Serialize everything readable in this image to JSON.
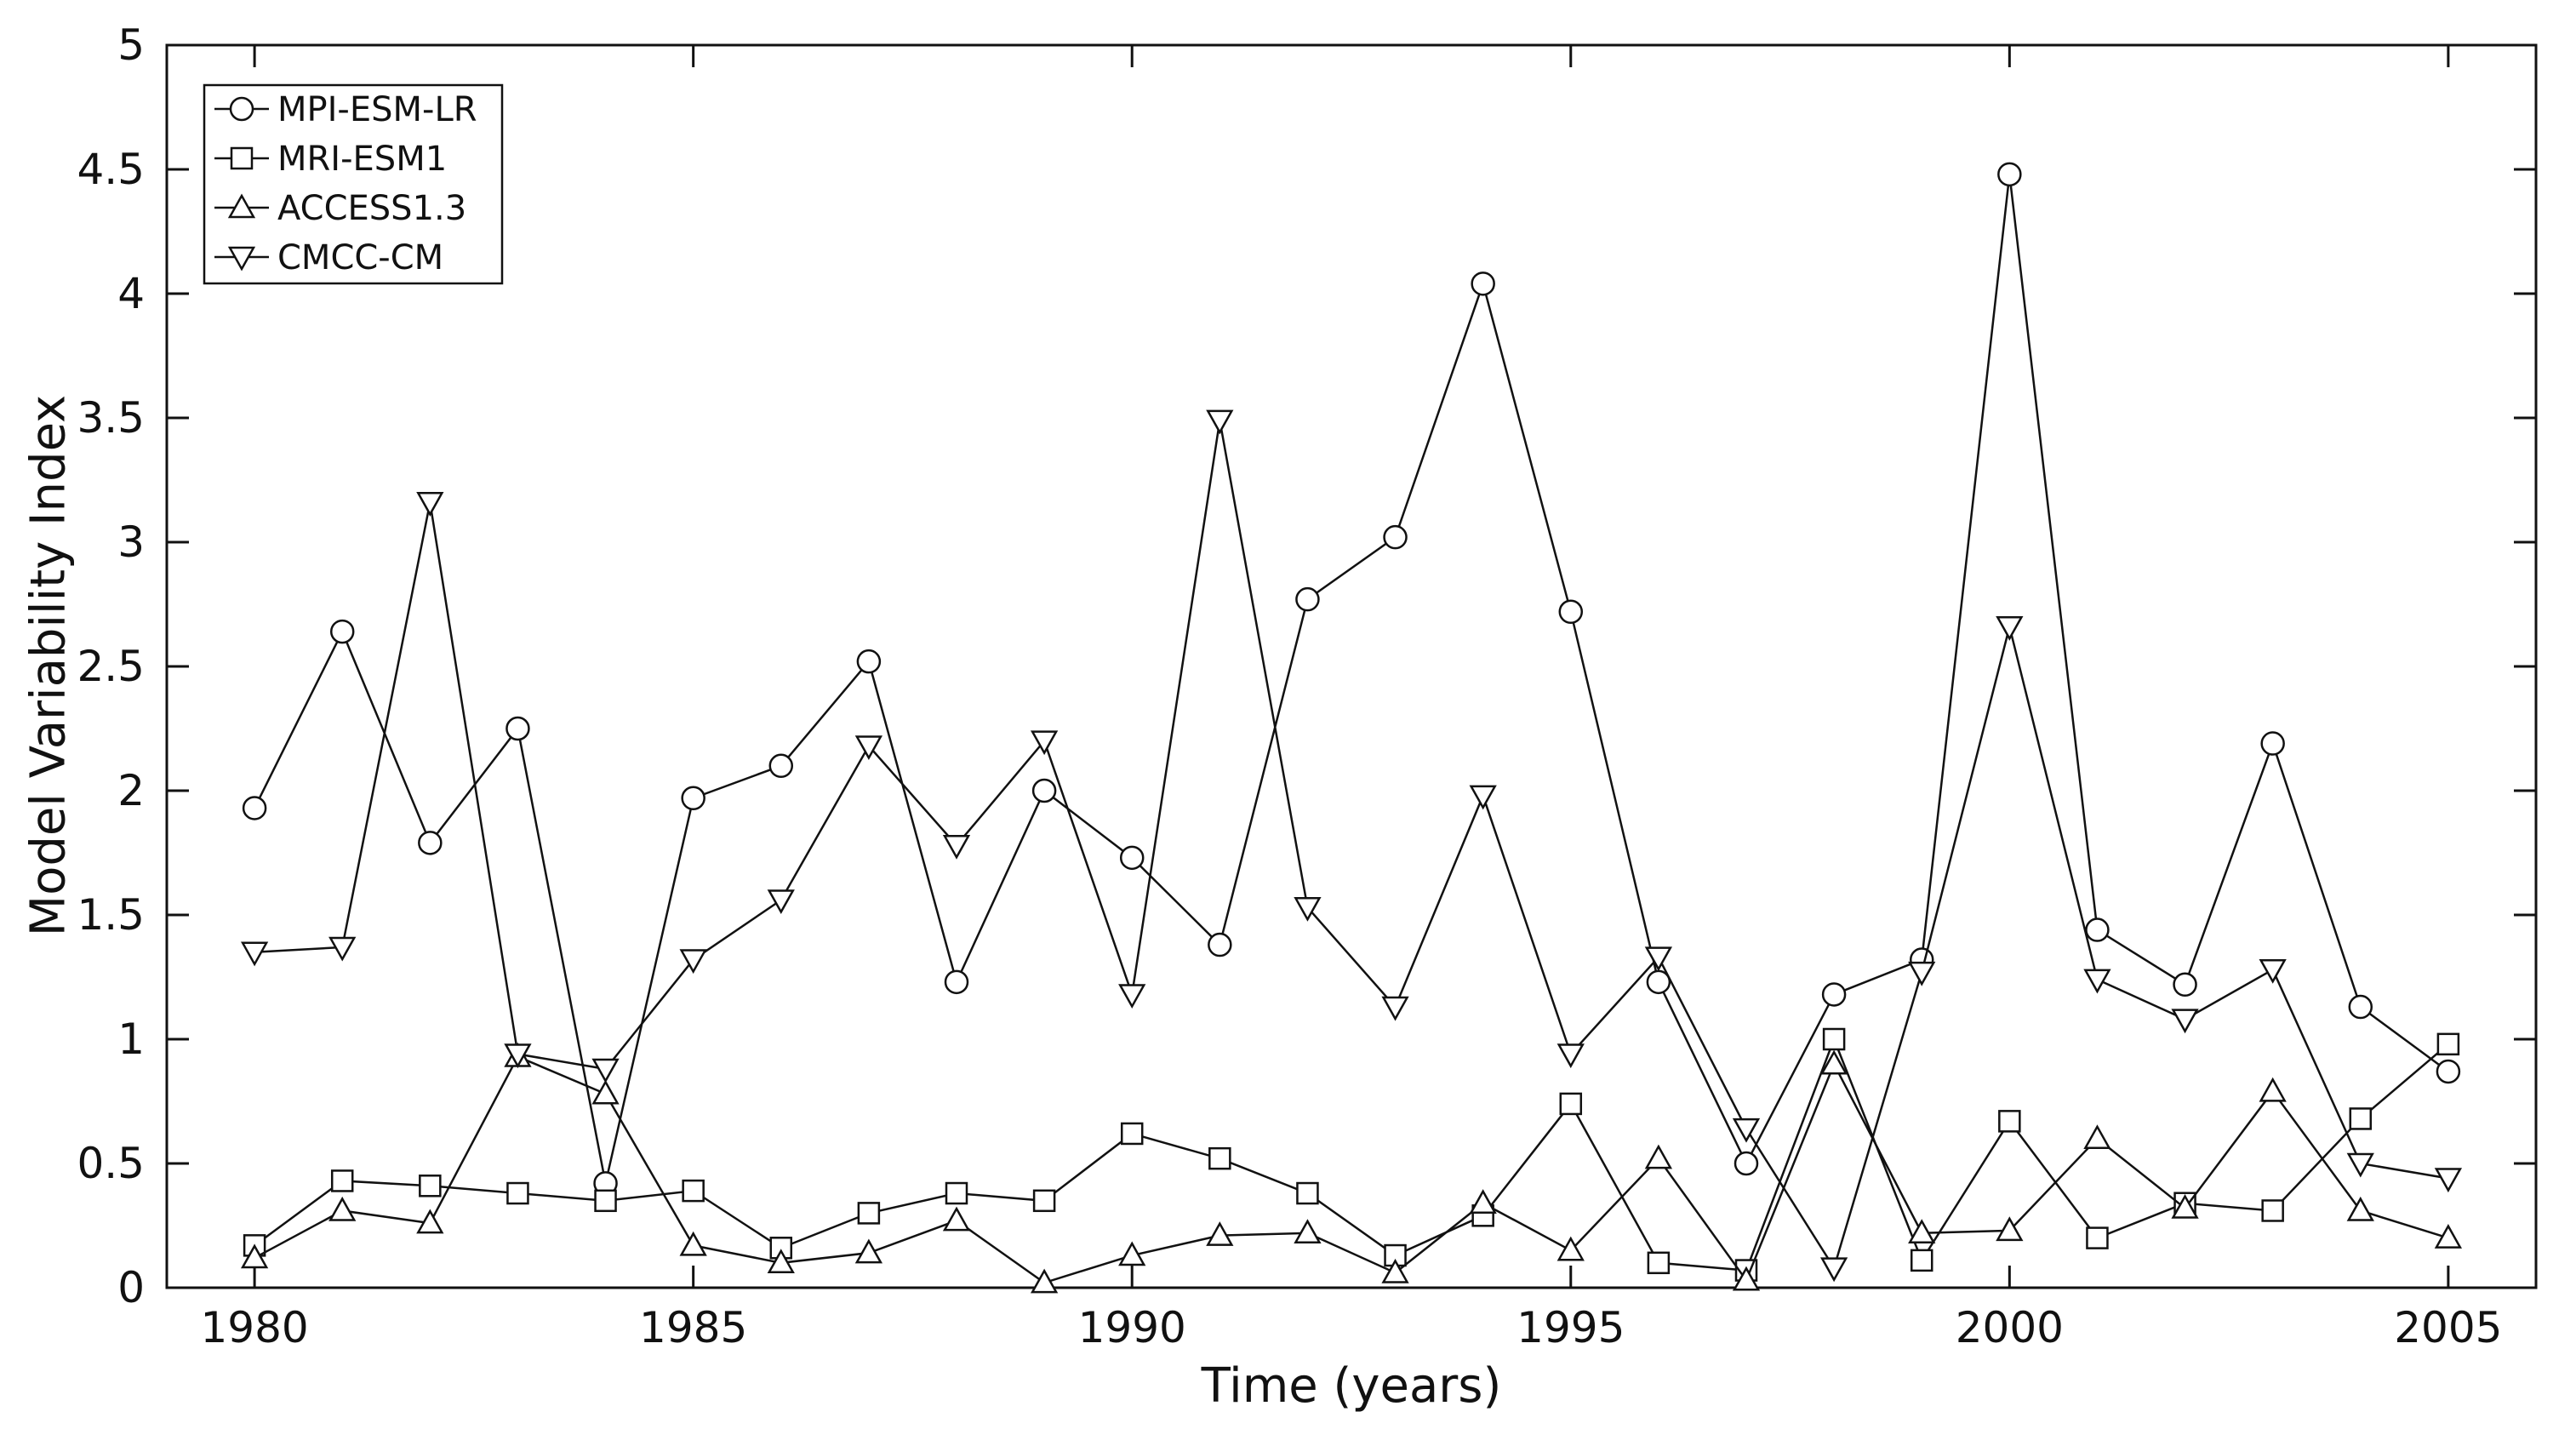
{
  "chart_data": {
    "type": "line",
    "title": "",
    "xlabel": "Time (years)",
    "ylabel": "Model Variability Index",
    "xlim": [
      1979,
      2006
    ],
    "ylim": [
      0,
      5
    ],
    "x_ticks": [
      1980,
      1985,
      1990,
      1995,
      2000,
      2005
    ],
    "y_ticks": [
      0,
      0.5,
      1,
      1.5,
      2,
      2.5,
      3,
      3.5,
      4,
      4.5,
      5
    ],
    "grid": false,
    "legend_position": "top-left",
    "line_color": "#111111",
    "marker_fill": "#ffffff",
    "x": [
      1980,
      1981,
      1982,
      1983,
      1984,
      1985,
      1986,
      1987,
      1988,
      1989,
      1990,
      1991,
      1992,
      1993,
      1994,
      1995,
      1996,
      1997,
      1998,
      1999,
      2000,
      2001,
      2002,
      2003,
      2004,
      2005
    ],
    "series": [
      {
        "name": "MPI-ESM-LR",
        "marker": "circle",
        "values": [
          1.93,
          2.64,
          1.79,
          2.25,
          0.42,
          1.97,
          2.1,
          2.52,
          1.23,
          2.0,
          1.73,
          1.38,
          2.77,
          3.02,
          4.04,
          2.72,
          1.23,
          0.5,
          1.18,
          1.32,
          4.48,
          1.44,
          1.22,
          2.19,
          1.13,
          0.87
        ]
      },
      {
        "name": "MRI-ESM1",
        "marker": "square",
        "values": [
          0.17,
          0.43,
          0.41,
          0.38,
          0.35,
          0.39,
          0.16,
          0.3,
          0.38,
          0.35,
          0.62,
          0.52,
          0.38,
          0.13,
          0.29,
          0.74,
          0.1,
          0.07,
          1.0,
          0.11,
          0.67,
          0.2,
          0.34,
          0.31,
          0.68,
          0.98
        ]
      },
      {
        "name": "ACCESS1.3",
        "marker": "triangle-up",
        "values": [
          0.12,
          0.31,
          0.26,
          0.93,
          0.78,
          0.17,
          0.1,
          0.14,
          0.27,
          0.02,
          0.13,
          0.21,
          0.22,
          0.06,
          0.34,
          0.15,
          0.52,
          0.03,
          0.9,
          0.22,
          0.23,
          0.6,
          0.32,
          0.79,
          0.31,
          0.2
        ]
      },
      {
        "name": "CMCC-CM",
        "marker": "triangle-down",
        "values": [
          1.35,
          1.37,
          3.16,
          0.94,
          0.88,
          1.32,
          1.56,
          2.18,
          1.78,
          2.2,
          1.18,
          3.49,
          1.53,
          1.13,
          1.98,
          0.94,
          1.33,
          0.64,
          0.08,
          1.27,
          2.66,
          1.24,
          1.08,
          1.28,
          0.5,
          0.44
        ]
      }
    ]
  }
}
